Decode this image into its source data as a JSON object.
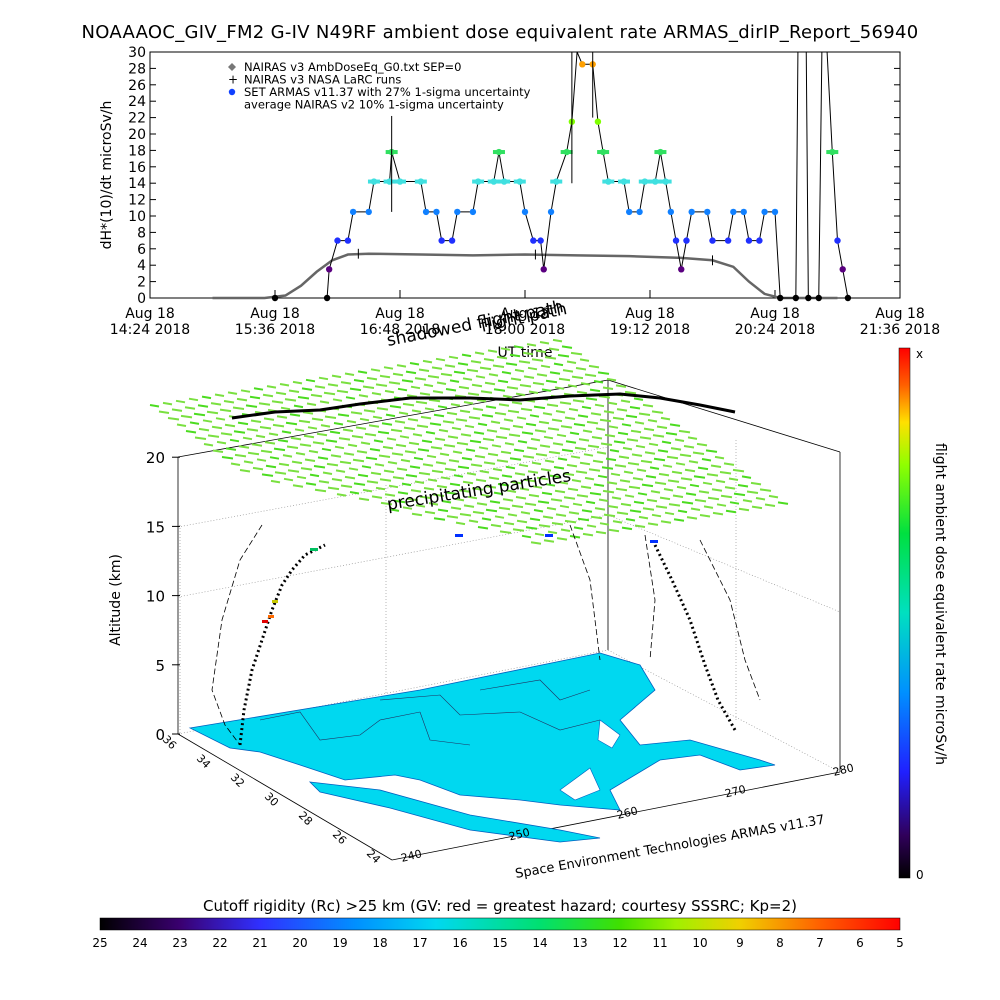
{
  "figure": {
    "title": "NOAAAOC_GIV_FM2 G-IV   N49RF  ambient dose equivalent rate ARMAS_dirIP_Report_56940",
    "credit": "Space Environment Technologies ARMAS v11.37",
    "colorbar_title": "Cutoff rigidity (Rc) >25 km (GV: red = greatest hazard; courtesy SSSRC; Kp=2)",
    "colorbar_ticks": [
      "25",
      "24",
      "23",
      "22",
      "21",
      "20",
      "19",
      "18",
      "17",
      "16",
      "15",
      "14",
      "13",
      "12",
      "11",
      "10",
      "9",
      "8",
      "7",
      "6",
      "5"
    ],
    "side_colorbar": {
      "label": "flight ambient dose equivalent rate microSv/h",
      "top_label": "x",
      "bottom_label": "0"
    }
  },
  "chart_data": [
    {
      "type": "line",
      "ylabel": "dH*(10)/dt microSv/h",
      "xlabel": "UT time",
      "ylim": [
        0,
        30
      ],
      "yticks": [
        "0",
        "2",
        "4",
        "6",
        "8",
        "10",
        "12",
        "14",
        "16",
        "18",
        "20",
        "22",
        "24",
        "26",
        "28",
        "30"
      ],
      "xticks": [
        {
          "l1": "Aug 18",
          "l2": "14:24 2018"
        },
        {
          "l1": "Aug 18",
          "l2": "15:36 2018"
        },
        {
          "l1": "Aug 18",
          "l2": "16:48 2018"
        },
        {
          "l1": "Aug 18",
          "l2": "18:00 2018"
        },
        {
          "l1": "Aug 18",
          "l2": "19:12 2018"
        },
        {
          "l1": "Aug 18",
          "l2": "20:24 2018"
        },
        {
          "l1": "Aug 18",
          "l2": "21:36 2018"
        }
      ],
      "x_hours": [
        14.4,
        21.6
      ],
      "legend": [
        {
          "symbol": "diamond",
          "color": "#777777",
          "label": "NAIRAS v3 AmbDoseEq_G0.txt SEP=0"
        },
        {
          "symbol": "plus",
          "color": "#000000",
          "label": "NAIRAS v3 NASA LaRC runs"
        },
        {
          "symbol": "dot",
          "color": "#1040ff",
          "label": "SET ARMAS v11.37 with 27% 1-sigma uncertainty"
        },
        {
          "symbol": "none",
          "color": "#000000",
          "label": "average NAIRAS v2 10% 1-sigma uncertainty"
        }
      ],
      "series": [
        {
          "name": "NAIRAS v3 AmbDoseEq_G0.txt SEP=0",
          "color": "#666666",
          "points": [
            [
              15.0,
              0
            ],
            [
              15.5,
              0
            ],
            [
              15.7,
              0.3
            ],
            [
              15.85,
              1.5
            ],
            [
              16.0,
              3.2
            ],
            [
              16.15,
              4.6
            ],
            [
              16.3,
              5.3
            ],
            [
              16.5,
              5.4
            ],
            [
              17.0,
              5.3
            ],
            [
              17.5,
              5.2
            ],
            [
              18.0,
              5.3
            ],
            [
              18.5,
              5.2
            ],
            [
              19.0,
              5.1
            ],
            [
              19.5,
              4.9
            ],
            [
              19.8,
              4.6
            ],
            [
              20.0,
              3.8
            ],
            [
              20.15,
              2.0
            ],
            [
              20.3,
              0.5
            ],
            [
              20.45,
              0
            ],
            [
              21.0,
              0
            ]
          ]
        },
        {
          "name": "SET ARMAS v11.37 with 27% 1-sigma uncertainty",
          "points": [
            [
              15.6,
              0
            ],
            [
              16.1,
              0
            ],
            [
              16.12,
              3.5
            ],
            [
              16.2,
              7.0
            ],
            [
              16.3,
              7.0
            ],
            [
              16.35,
              10.5
            ],
            [
              16.5,
              10.5
            ],
            [
              16.55,
              14.2
            ],
            [
              16.7,
              14.2
            ],
            [
              16.72,
              17.8
            ],
            [
              16.8,
              14.2
            ],
            [
              17.0,
              14.2
            ],
            [
              17.05,
              10.5
            ],
            [
              17.15,
              10.5
            ],
            [
              17.2,
              7.0
            ],
            [
              17.3,
              7.0
            ],
            [
              17.35,
              10.5
            ],
            [
              17.5,
              10.5
            ],
            [
              17.55,
              14.2
            ],
            [
              17.7,
              14.2
            ],
            [
              17.75,
              17.8
            ],
            [
              17.8,
              14.2
            ],
            [
              17.95,
              14.2
            ],
            [
              18.0,
              10.5
            ],
            [
              18.08,
              7.0
            ],
            [
              18.15,
              7.0
            ],
            [
              18.18,
              3.5
            ],
            [
              18.25,
              10.5
            ],
            [
              18.3,
              14.2
            ],
            [
              18.4,
              17.8
            ],
            [
              18.45,
              21.5
            ],
            [
              18.5,
              30
            ],
            [
              18.55,
              28.5
            ],
            [
              18.65,
              28.5
            ],
            [
              18.7,
              21.5
            ],
            [
              18.75,
              17.8
            ],
            [
              18.8,
              14.2
            ],
            [
              18.95,
              14.2
            ],
            [
              19.0,
              10.5
            ],
            [
              19.1,
              10.5
            ],
            [
              19.15,
              14.2
            ],
            [
              19.25,
              14.2
            ],
            [
              19.3,
              17.8
            ],
            [
              19.35,
              14.2
            ],
            [
              19.4,
              10.5
            ],
            [
              19.45,
              7.0
            ],
            [
              19.5,
              3.5
            ],
            [
              19.55,
              7.0
            ],
            [
              19.6,
              10.5
            ],
            [
              19.75,
              10.5
            ],
            [
              19.8,
              7.0
            ],
            [
              19.95,
              7.0
            ],
            [
              20.0,
              10.5
            ],
            [
              20.1,
              10.5
            ],
            [
              20.15,
              7.0
            ],
            [
              20.25,
              7.0
            ],
            [
              20.3,
              10.5
            ],
            [
              20.4,
              10.5
            ],
            [
              20.45,
              0
            ],
            [
              20.6,
              0
            ],
            [
              20.62,
              30
            ],
            [
              20.7,
              30
            ],
            [
              20.72,
              0
            ],
            [
              20.82,
              0
            ],
            [
              20.85,
              30
            ],
            [
              20.9,
              30
            ],
            [
              20.95,
              17.8
            ],
            [
              21.0,
              7.0
            ],
            [
              21.05,
              3.5
            ],
            [
              21.1,
              0
            ]
          ]
        }
      ]
    },
    {
      "type": "scatter",
      "title": "precipitating particles",
      "annotations": [
        "shadowed flight path",
        "flight path"
      ],
      "zlabel": "Altitude (km)",
      "zticks": [
        "0",
        "5",
        "10",
        "15",
        "20"
      ],
      "lat_ticks": [
        "36",
        "34",
        "32",
        "30",
        "28",
        "26",
        "24"
      ],
      "lon_ticks": [
        "240",
        "250",
        "260",
        "270",
        "280"
      ]
    }
  ]
}
